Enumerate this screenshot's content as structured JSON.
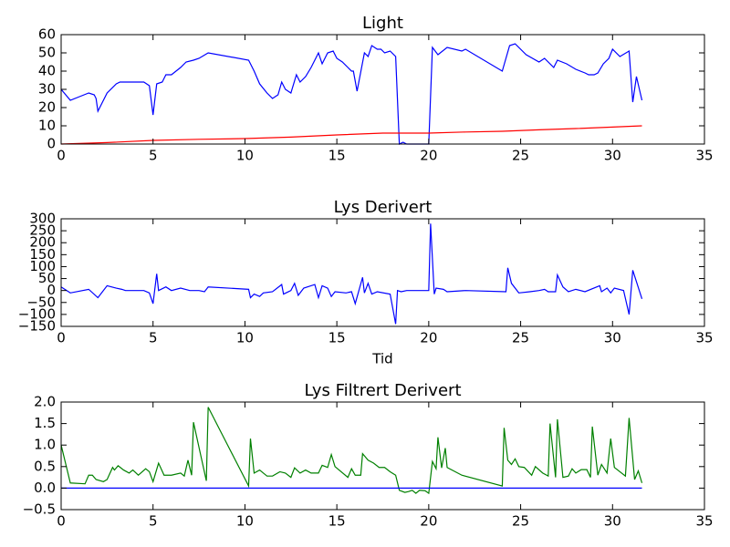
{
  "chart_data": [
    {
      "type": "line",
      "title": "Light",
      "xlim": [
        0,
        35
      ],
      "xticks": [
        0,
        5,
        10,
        15,
        20,
        25,
        30,
        35
      ],
      "ylim": [
        0,
        60
      ],
      "yticks": [
        0,
        10,
        20,
        30,
        40,
        50,
        60
      ],
      "series": [
        {
          "color": "#0000ff",
          "x": [
            0,
            0.5,
            1,
            1.5,
            1.8,
            1.9,
            2,
            2.5,
            3,
            3.2,
            4,
            4.5,
            4.8,
            5,
            5.2,
            5.5,
            5.7,
            6,
            6.5,
            6.8,
            7.2,
            7.5,
            8,
            10.2,
            10.5,
            10.8,
            11.2,
            11.5,
            11.8,
            12,
            12.2,
            12.5,
            12.8,
            13,
            13.3,
            13.6,
            14,
            14.2,
            14.5,
            14.8,
            15,
            15.3,
            15.6,
            15.8,
            15.9,
            16.1,
            16.5,
            16.7,
            16.9,
            17.2,
            17.4,
            17.6,
            17.9,
            18.2,
            18.4,
            18.6,
            18.8,
            20,
            20.2,
            20.5,
            21,
            21.8,
            22,
            24,
            24.2,
            24.4,
            24.7,
            25.3,
            26,
            26.3,
            26.8,
            27,
            27.5,
            28,
            28.5,
            28.7,
            29,
            29.2,
            29.5,
            29.8,
            30,
            30.4,
            30.9,
            31.1,
            31.3,
            31.6
          ],
          "values": [
            30,
            24,
            26,
            28,
            27,
            25,
            18,
            28,
            33,
            34,
            34,
            34,
            32,
            16,
            33,
            34,
            38,
            38,
            42,
            45,
            46,
            47,
            50,
            46,
            40,
            33,
            28,
            25,
            27,
            34,
            30,
            28,
            38,
            34,
            37,
            42,
            50,
            44,
            50,
            51,
            47,
            45,
            42,
            40,
            40,
            29,
            50,
            48,
            54,
            52,
            52,
            50,
            51,
            48,
            0,
            1,
            0,
            0,
            53,
            49,
            53,
            51,
            52,
            40,
            47,
            54,
            55,
            49,
            45,
            47,
            42,
            46,
            44,
            41,
            39,
            38,
            38,
            39,
            44,
            47,
            52,
            48,
            51,
            23,
            37,
            24
          ]
        },
        {
          "color": "#ff0000",
          "x": [
            0,
            2.5,
            5,
            7.5,
            10,
            12.5,
            15,
            17.5,
            20,
            22,
            24,
            26,
            28,
            30,
            31.6
          ],
          "values": [
            0,
            0.8,
            2,
            2.6,
            3,
            3.8,
            5,
            6,
            6,
            6.6,
            7,
            7.8,
            8.5,
            9.3,
            10
          ]
        }
      ]
    },
    {
      "type": "line",
      "title": "Lys Derivert",
      "xlabel": "Tid",
      "xlim": [
        0,
        35
      ],
      "xticks": [
        0,
        5,
        10,
        15,
        20,
        25,
        30,
        35
      ],
      "ylim": [
        -150,
        300
      ],
      "yticks": [
        {
          "value": -150,
          "label": "−150"
        },
        {
          "value": -100,
          "label": "−100"
        },
        {
          "value": -50,
          "label": "−50"
        },
        0,
        50,
        100,
        150,
        200,
        250,
        300
      ],
      "series": [
        {
          "color": "#0000ff",
          "x": [
            0,
            0.5,
            1.5,
            2,
            2.5,
            3,
            3.3,
            3.5,
            4.5,
            4.8,
            5,
            5.2,
            5.3,
            5.7,
            6,
            6.5,
            7,
            7.5,
            7.8,
            8,
            10.2,
            10.3,
            10.5,
            10.8,
            11,
            11.5,
            12,
            12.1,
            12.5,
            12.7,
            12.9,
            13.2,
            13.8,
            14,
            14.2,
            14.5,
            14.7,
            14.9,
            15.5,
            15.8,
            16,
            16.4,
            16.5,
            16.7,
            16.9,
            17.2,
            17.9,
            18.2,
            18.3,
            18.5,
            18.8,
            20,
            20.1,
            20.3,
            20.4,
            20.8,
            21,
            22,
            24.2,
            24.3,
            24.5,
            24.9,
            25.5,
            26,
            26.3,
            26.5,
            26.9,
            27,
            27.3,
            27.6,
            28,
            28.5,
            29.3,
            29.4,
            29.7,
            29.9,
            30.1,
            30.6,
            30.9,
            31.1,
            31.6
          ],
          "values": [
            15,
            -10,
            5,
            -30,
            20,
            10,
            5,
            0,
            0,
            -10,
            -55,
            70,
            0,
            15,
            0,
            10,
            0,
            0,
            -5,
            15,
            5,
            -30,
            -15,
            -25,
            -10,
            -5,
            25,
            -15,
            0,
            30,
            -20,
            10,
            25,
            -30,
            20,
            10,
            -25,
            -5,
            -10,
            -5,
            -55,
            55,
            -10,
            30,
            -15,
            -5,
            -15,
            -140,
            0,
            -5,
            0,
            0,
            280,
            -15,
            10,
            5,
            -5,
            0,
            -5,
            95,
            30,
            -10,
            -5,
            0,
            5,
            -5,
            -5,
            65,
            15,
            -5,
            5,
            -5,
            20,
            -5,
            10,
            -10,
            10,
            0,
            -100,
            85,
            -35
          ]
        }
      ]
    },
    {
      "type": "line",
      "title": "Lys Filtrert Derivert",
      "xlim": [
        0,
        35
      ],
      "xticks": [
        0,
        5,
        10,
        15,
        20,
        25,
        30,
        35
      ],
      "ylim": [
        -0.5,
        2
      ],
      "yticks": [
        {
          "value": -0.5,
          "label": "−0.5"
        },
        {
          "value": 0,
          "label": "0.0"
        },
        0.5,
        {
          "value": 1,
          "label": "1.0"
        },
        1.5,
        {
          "value": 2,
          "label": "2.0"
        }
      ],
      "series": [
        {
          "color": "#008000",
          "x": [
            0,
            0.5,
            1.3,
            1.5,
            1.7,
            1.9,
            2.3,
            2.5,
            2.8,
            2.9,
            3.1,
            3.4,
            3.7,
            3.9,
            4.2,
            4.6,
            4.8,
            5,
            5.3,
            5.6,
            6,
            6.5,
            6.7,
            6.9,
            7.1,
            7.2,
            7.9,
            8,
            10.2,
            10.3,
            10.5,
            10.8,
            11.2,
            11.5,
            11.9,
            12.2,
            12.5,
            12.7,
            13,
            13.3,
            13.6,
            14,
            14.2,
            14.5,
            14.7,
            14.9,
            15.6,
            15.8,
            16,
            16.3,
            16.4,
            16.7,
            17,
            17.3,
            17.6,
            17.9,
            18.2,
            18.4,
            18.7,
            18.9,
            19.1,
            19.3,
            19.5,
            19.8,
            20,
            20.2,
            20.4,
            20.5,
            20.7,
            20.9,
            21,
            21.8,
            24,
            24.1,
            24.3,
            24.5,
            24.7,
            24.9,
            25.2,
            25.6,
            25.8,
            26.2,
            26.5,
            26.6,
            26.9,
            27,
            27.3,
            27.6,
            27.8,
            28,
            28.3,
            28.6,
            28.8,
            28.9,
            29.2,
            29.4,
            29.7,
            29.9,
            30.1,
            30.7,
            30.9,
            31.2,
            31.4,
            31.6
          ],
          "values": [
            1.0,
            0.12,
            0.1,
            0.3,
            0.3,
            0.2,
            0.15,
            0.2,
            0.48,
            0.42,
            0.52,
            0.42,
            0.35,
            0.42,
            0.3,
            0.45,
            0.38,
            0.15,
            0.58,
            0.3,
            0.3,
            0.35,
            0.28,
            0.65,
            0.3,
            1.53,
            0.17,
            1.88,
            0.05,
            1.15,
            0.35,
            0.42,
            0.28,
            0.28,
            0.38,
            0.35,
            0.25,
            0.47,
            0.35,
            0.42,
            0.35,
            0.35,
            0.53,
            0.48,
            0.78,
            0.5,
            0.25,
            0.45,
            0.3,
            0.3,
            0.8,
            0.65,
            0.58,
            0.48,
            0.48,
            0.38,
            0.3,
            -0.05,
            -0.1,
            -0.08,
            -0.05,
            -0.12,
            -0.05,
            -0.06,
            -0.12,
            0.62,
            0.45,
            1.18,
            0.47,
            0.93,
            0.48,
            0.3,
            0.05,
            1.4,
            0.65,
            0.55,
            0.68,
            0.5,
            0.48,
            0.3,
            0.5,
            0.35,
            0.28,
            1.5,
            0.25,
            1.6,
            0.25,
            0.28,
            0.45,
            0.35,
            0.43,
            0.43,
            0.25,
            1.43,
            0.3,
            0.55,
            0.35,
            1.15,
            0.48,
            0.28,
            1.63,
            0.2,
            0.4,
            0.12
          ]
        },
        {
          "color": "#0000ff",
          "x": [
            0,
            31.6
          ],
          "values": [
            0,
            0
          ]
        }
      ]
    }
  ]
}
